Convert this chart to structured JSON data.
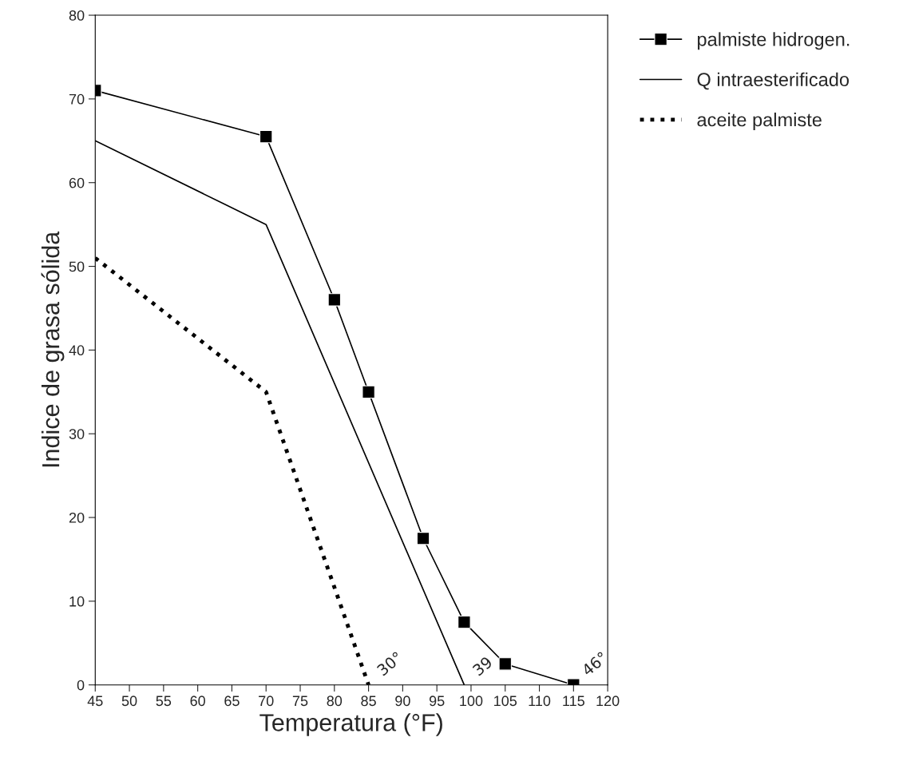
{
  "chart_data": {
    "type": "line",
    "xlabel": "Temperatura (°F)",
    "ylabel": "Indice de grasa sólida",
    "xlim": [
      45,
      120
    ],
    "xticks": [
      45,
      50,
      55,
      60,
      65,
      70,
      75,
      80,
      85,
      90,
      95,
      100,
      105,
      110,
      115,
      120
    ],
    "ylim": [
      0,
      80
    ],
    "yticks": [
      0,
      10,
      20,
      30,
      40,
      50,
      60,
      70,
      80
    ],
    "grid": false,
    "legend": "right",
    "series": [
      {
        "name": "palmiste hidrogen.",
        "color": "#000000",
        "marker": "square",
        "line_style": "solid",
        "x": [
          45,
          70,
          80,
          85,
          93,
          99,
          105,
          115
        ],
        "values": [
          71,
          65.5,
          46,
          35,
          17.5,
          7.5,
          2.5,
          0
        ]
      },
      {
        "name": "Q intraesterificado",
        "color": "#000000",
        "marker": "none",
        "line_style": "solid",
        "x": [
          45,
          70,
          99
        ],
        "values": [
          65,
          55,
          0
        ]
      },
      {
        "name": "aceite palmiste",
        "color": "#000000",
        "marker": "none",
        "line_style": "dotted",
        "x": [
          45,
          70,
          85
        ],
        "values": [
          51,
          35,
          0
        ]
      }
    ],
    "annotations": [
      {
        "text": "30°",
        "x": 85,
        "y": 0
      },
      {
        "text": "39",
        "x": 99,
        "y": 0
      },
      {
        "text": "46°",
        "x": 115,
        "y": 0
      }
    ]
  }
}
